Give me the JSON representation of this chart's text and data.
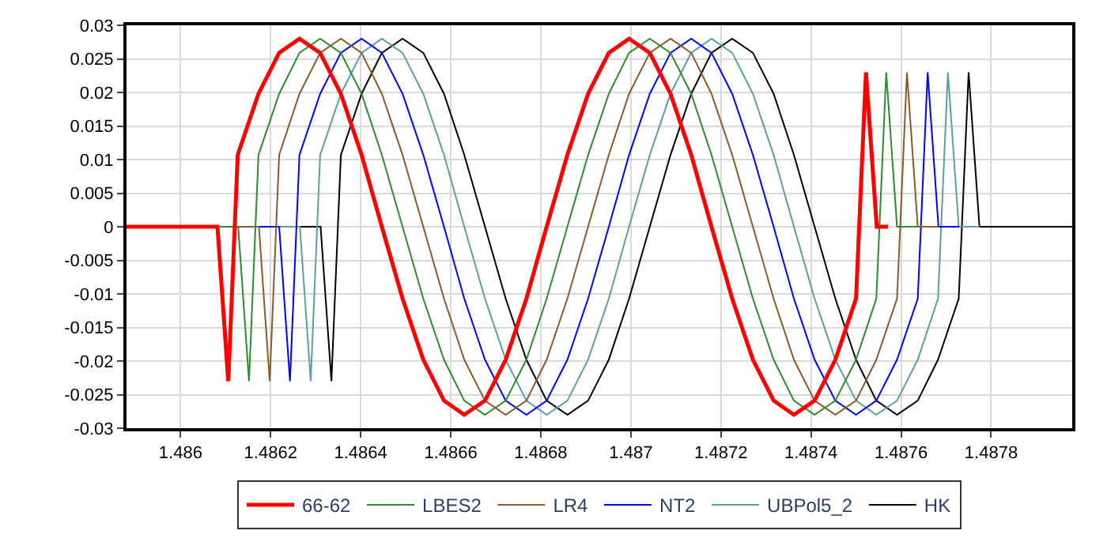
{
  "chart_data": {
    "type": "line",
    "xlim": [
      1.48588,
      1.48798
    ],
    "ylim": [
      -0.03,
      0.03
    ],
    "xticks": [
      1.486,
      1.4862,
      1.4864,
      1.4866,
      1.4868,
      1.487,
      1.4872,
      1.4874,
      1.4876,
      1.4878
    ],
    "yticks": [
      -0.03,
      -0.025,
      -0.02,
      -0.015,
      -0.01,
      -0.005,
      0,
      0.005,
      0.01,
      0.015,
      0.02,
      0.025,
      0.03
    ],
    "grid": true,
    "legend": "bottom",
    "marker": "none",
    "line_style": "solid",
    "series": [
      {
        "name": "66-62",
        "color": "#ff0000",
        "x": [
          1.48588,
          1.486082,
          1.486106,
          1.486127,
          1.486173,
          1.486219,
          1.486264,
          1.48631,
          1.486356,
          1.486402,
          1.486447,
          1.486493,
          1.486539,
          1.486585,
          1.48663,
          1.486676,
          1.486722,
          1.486768,
          1.486813,
          1.486859,
          1.486905,
          1.486951,
          1.486996,
          1.487042,
          1.487088,
          1.487134,
          1.487179,
          1.487225,
          1.487271,
          1.487317,
          1.487362,
          1.487408,
          1.487454,
          1.4875,
          1.487522,
          1.487546,
          1.487571
        ],
        "values": [
          0,
          0,
          -0.023,
          0.0107,
          0.0198,
          0.0259,
          0.028,
          0.0259,
          0.0198,
          0.0107,
          0,
          -0.0107,
          -0.0198,
          -0.0259,
          -0.028,
          -0.0259,
          -0.0198,
          -0.0107,
          0,
          0.0107,
          0.0198,
          0.0259,
          0.028,
          0.0259,
          0.0198,
          0.0107,
          0,
          -0.0107,
          -0.0198,
          -0.0259,
          -0.028,
          -0.0259,
          -0.0198,
          -0.0107,
          0.023,
          0,
          0
        ]
      },
      {
        "name": "LBES2",
        "color": "#2e8b2e",
        "x": [
          1.48588,
          1.486128,
          1.486152,
          1.486173,
          1.486219,
          1.486264,
          1.48631,
          1.486356,
          1.486402,
          1.486447,
          1.486493,
          1.486539,
          1.486585,
          1.48663,
          1.486676,
          1.486722,
          1.486768,
          1.486813,
          1.486859,
          1.486905,
          1.486951,
          1.486996,
          1.487042,
          1.487088,
          1.487134,
          1.487179,
          1.487225,
          1.487271,
          1.487317,
          1.487362,
          1.487408,
          1.487454,
          1.4875,
          1.487545,
          1.487567,
          1.487591,
          1.487637
        ],
        "values": [
          0,
          0,
          -0.023,
          0.0107,
          0.0198,
          0.0259,
          0.028,
          0.0259,
          0.0198,
          0.0107,
          0,
          -0.0107,
          -0.0198,
          -0.0259,
          -0.028,
          -0.0259,
          -0.0198,
          -0.0107,
          0,
          0.0107,
          0.0198,
          0.0259,
          0.028,
          0.0259,
          0.0198,
          0.0107,
          0,
          -0.0107,
          -0.0198,
          -0.0259,
          -0.028,
          -0.0259,
          -0.0198,
          -0.0107,
          0.023,
          0,
          0
        ]
      },
      {
        "name": "LR4",
        "color": "#8b5a2b",
        "x": [
          1.48588,
          1.486174,
          1.486198,
          1.486219,
          1.486264,
          1.48631,
          1.486356,
          1.486402,
          1.486447,
          1.486493,
          1.486539,
          1.486585,
          1.48663,
          1.486676,
          1.486722,
          1.486768,
          1.486813,
          1.486859,
          1.486905,
          1.486951,
          1.486996,
          1.487042,
          1.487088,
          1.487134,
          1.487179,
          1.487225,
          1.487271,
          1.487317,
          1.487362,
          1.487408,
          1.487454,
          1.4875,
          1.487545,
          1.487591,
          1.487613,
          1.487637,
          1.487683
        ],
        "values": [
          0,
          0,
          -0.023,
          0.0107,
          0.0198,
          0.0259,
          0.028,
          0.0259,
          0.0198,
          0.0107,
          0,
          -0.0107,
          -0.0198,
          -0.0259,
          -0.028,
          -0.0259,
          -0.0198,
          -0.0107,
          0,
          0.0107,
          0.0198,
          0.0259,
          0.028,
          0.0259,
          0.0198,
          0.0107,
          0,
          -0.0107,
          -0.0198,
          -0.0259,
          -0.028,
          -0.0259,
          -0.0198,
          -0.0107,
          0.023,
          0,
          0
        ]
      },
      {
        "name": "NT2",
        "color": "#0000ff",
        "x": [
          1.48588,
          1.486219,
          1.486243,
          1.486264,
          1.48631,
          1.486356,
          1.486402,
          1.486447,
          1.486493,
          1.486539,
          1.486585,
          1.48663,
          1.486676,
          1.486722,
          1.486768,
          1.486813,
          1.486859,
          1.486905,
          1.486951,
          1.486996,
          1.487042,
          1.487088,
          1.487134,
          1.487179,
          1.487225,
          1.487271,
          1.487317,
          1.487362,
          1.487408,
          1.487454,
          1.4875,
          1.487545,
          1.487591,
          1.487637,
          1.487659,
          1.487683,
          1.487729
        ],
        "values": [
          0,
          0,
          -0.023,
          0.0107,
          0.0198,
          0.0259,
          0.028,
          0.0259,
          0.0198,
          0.0107,
          0,
          -0.0107,
          -0.0198,
          -0.0259,
          -0.028,
          -0.0259,
          -0.0198,
          -0.0107,
          0,
          0.0107,
          0.0198,
          0.0259,
          0.028,
          0.0259,
          0.0198,
          0.0107,
          0,
          -0.0107,
          -0.0198,
          -0.0259,
          -0.028,
          -0.0259,
          -0.0198,
          -0.0107,
          0.023,
          0,
          0
        ]
      },
      {
        "name": "UBPol5_2",
        "color": "#5f9ea0",
        "x": [
          1.48588,
          1.486265,
          1.486289,
          1.48631,
          1.486356,
          1.486402,
          1.486447,
          1.486493,
          1.486539,
          1.486585,
          1.48663,
          1.486676,
          1.486722,
          1.486768,
          1.486813,
          1.486859,
          1.486905,
          1.486951,
          1.486996,
          1.487042,
          1.487088,
          1.487134,
          1.487179,
          1.487225,
          1.487271,
          1.487317,
          1.487362,
          1.487408,
          1.487454,
          1.4875,
          1.487545,
          1.487591,
          1.487637,
          1.487682,
          1.487704,
          1.487728,
          1.487774
        ],
        "values": [
          0,
          0,
          -0.023,
          0.0107,
          0.0198,
          0.0259,
          0.028,
          0.0259,
          0.0198,
          0.0107,
          0,
          -0.0107,
          -0.0198,
          -0.0259,
          -0.028,
          -0.0259,
          -0.0198,
          -0.0107,
          0,
          0.0107,
          0.0198,
          0.0259,
          0.028,
          0.0259,
          0.0198,
          0.0107,
          0,
          -0.0107,
          -0.0198,
          -0.0259,
          -0.028,
          -0.0259,
          -0.0198,
          -0.0107,
          0.023,
          0,
          0
        ]
      },
      {
        "name": "HK",
        "color": "#000000",
        "x": [
          1.48588,
          1.486311,
          1.486335,
          1.486356,
          1.486402,
          1.486447,
          1.486493,
          1.486539,
          1.486585,
          1.48663,
          1.486676,
          1.486722,
          1.486768,
          1.486813,
          1.486859,
          1.486905,
          1.486951,
          1.486996,
          1.487042,
          1.487088,
          1.487134,
          1.487179,
          1.487225,
          1.487271,
          1.487317,
          1.487362,
          1.487408,
          1.487454,
          1.4875,
          1.487545,
          1.487591,
          1.487637,
          1.487682,
          1.487728,
          1.48775,
          1.487774,
          1.48798
        ],
        "values": [
          0,
          0,
          -0.023,
          0.0107,
          0.0198,
          0.0259,
          0.028,
          0.0259,
          0.0198,
          0.0107,
          0,
          -0.0107,
          -0.0198,
          -0.0259,
          -0.028,
          -0.0259,
          -0.0198,
          -0.0107,
          0,
          0.0107,
          0.0198,
          0.0259,
          0.028,
          0.0259,
          0.0198,
          0.0107,
          0,
          -0.0107,
          -0.0198,
          -0.0259,
          -0.028,
          -0.0259,
          -0.0198,
          -0.0107,
          0.023,
          0,
          0
        ]
      }
    ]
  }
}
